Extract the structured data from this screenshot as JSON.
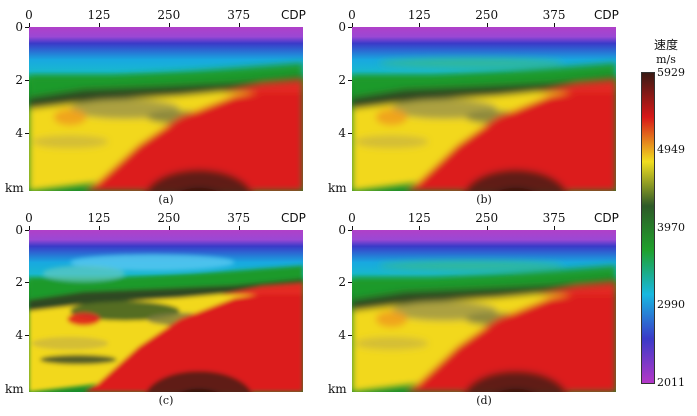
{
  "chart_data": {
    "type": "heatmap",
    "x_ticks": [
      "0",
      "125",
      "250",
      "375"
    ],
    "x_label": "CDP",
    "y_ticks": [
      "0",
      "2",
      "4"
    ],
    "y_label": "km",
    "x_range": [
      0,
      490
    ],
    "y_range_km": [
      0,
      6.2
    ],
    "panels": [
      {
        "caption": "(a)"
      },
      {
        "caption": "(b)"
      },
      {
        "caption": "(c)"
      },
      {
        "caption": "(d)"
      }
    ],
    "colorbar": {
      "title": "速度",
      "unit": "m/s",
      "ticks": [
        "5929",
        "4949",
        "3970",
        "2990",
        "2011"
      ],
      "range": [
        2011,
        5929
      ],
      "colors": [
        "#3a1a14",
        "#d81818",
        "#f0dd20",
        "#2e5a28",
        "#1fa02c",
        "#18b8e0",
        "#3a3ac8",
        "#b438c8"
      ]
    }
  }
}
